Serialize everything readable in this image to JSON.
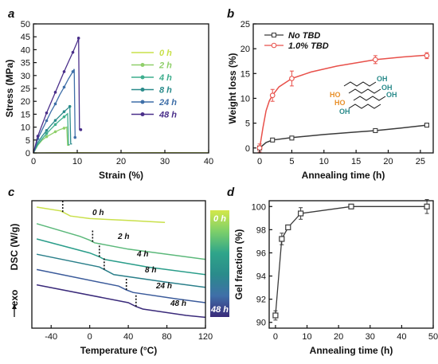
{
  "chart_data": [
    {
      "panel": "a",
      "type": "line",
      "xlabel": "Strain (%)",
      "ylabel": "Stress (MPa)",
      "xlim": [
        0,
        40
      ],
      "ylim": [
        0,
        50
      ],
      "xticks": [
        0,
        10,
        20,
        30,
        40
      ],
      "yticks": [
        0,
        5,
        10,
        15,
        20,
        25,
        30,
        35,
        40,
        45,
        50
      ],
      "legend_position": "center-right",
      "series": [
        {
          "name": "0 h",
          "color": "#c9e04a",
          "points": [
            [
              0,
              0
            ],
            [
              5,
              0.1
            ],
            [
              10,
              0.1
            ],
            [
              20,
              0.05
            ],
            [
              30,
              0.1
            ],
            [
              40,
              0.05
            ]
          ]
        },
        {
          "name": "2 h",
          "color": "#8fcf6a",
          "points": [
            [
              0,
              0
            ],
            [
              1,
              3
            ],
            [
              2,
              5
            ],
            [
              3,
              6.3
            ],
            [
              4,
              7.2
            ],
            [
              5,
              8.2
            ],
            [
              6,
              9
            ],
            [
              7,
              9.6
            ],
            [
              7.6,
              10
            ],
            [
              7.8,
              3
            ],
            [
              8.2,
              3
            ]
          ]
        },
        {
          "name": "4 h",
          "color": "#3fae8e",
          "points": [
            [
              0,
              0
            ],
            [
              1,
              3.3
            ],
            [
              2,
              5.5
            ],
            [
              3,
              7.5
            ],
            [
              4,
              9.3
            ],
            [
              5,
              11
            ],
            [
              6,
              12.6
            ],
            [
              7,
              14
            ],
            [
              7.8,
              15.2
            ],
            [
              8,
              3.2
            ],
            [
              8.3,
              3.2
            ]
          ]
        },
        {
          "name": "8 h",
          "color": "#2a8b8b",
          "points": [
            [
              0,
              0
            ],
            [
              1,
              4
            ],
            [
              2,
              6.5
            ],
            [
              3,
              8.7
            ],
            [
              4,
              10.7
            ],
            [
              5,
              12.6
            ],
            [
              6,
              14.3
            ],
            [
              7,
              16
            ],
            [
              8,
              17.5
            ],
            [
              8.3,
              18
            ],
            [
              8.5,
              3.5
            ],
            [
              8.8,
              3.5
            ]
          ]
        },
        {
          "name": "24 h",
          "color": "#3f6fa8",
          "points": [
            [
              0,
              0
            ],
            [
              1,
              5.5
            ],
            [
              2,
              9
            ],
            [
              3,
              12.5
            ],
            [
              4,
              16
            ],
            [
              5,
              19
            ],
            [
              6,
              22.5
            ],
            [
              7,
              25.5
            ],
            [
              8,
              28.7
            ],
            [
              9,
              31.5
            ],
            [
              9.3,
              32.5
            ],
            [
              9.5,
              6
            ],
            [
              9.8,
              6
            ]
          ]
        },
        {
          "name": "48 h",
          "color": "#4a2f8a",
          "points": [
            [
              0,
              0
            ],
            [
              1,
              6.5
            ],
            [
              2,
              11
            ],
            [
              3,
              15.5
            ],
            [
              4,
              19.5
            ],
            [
              5,
              23.5
            ],
            [
              6,
              27.5
            ],
            [
              7,
              31.5
            ],
            [
              8,
              35.3
            ],
            [
              9,
              39
            ],
            [
              10,
              43
            ],
            [
              10.3,
              44.5
            ],
            [
              10.5,
              9
            ],
            [
              10.8,
              9
            ]
          ]
        }
      ]
    },
    {
      "panel": "b",
      "type": "line",
      "xlabel": "Annealing time (h)",
      "ylabel": "Weight loss (%)",
      "xlim": [
        -1,
        27
      ],
      "ylim": [
        -1,
        25
      ],
      "xticks": [
        0,
        5,
        10,
        15,
        20,
        25
      ],
      "yticks": [
        0,
        5,
        10,
        15,
        20,
        25
      ],
      "legend_position": "top-left",
      "series": [
        {
          "name": "No TBD",
          "color": "#3a3a3a",
          "marker": "square",
          "points": [
            [
              0,
              0
            ],
            [
              2,
              1.6
            ],
            [
              5,
              2
            ],
            [
              18,
              3.5
            ],
            [
              26,
              4.6
            ]
          ],
          "errors": [
            0.2,
            0.3,
            0.2,
            0.3,
            0.3
          ],
          "fit": [
            [
              0,
              0
            ],
            [
              1,
              1.1
            ],
            [
              2,
              1.6
            ],
            [
              5,
              2.1
            ],
            [
              10,
              2.7
            ],
            [
              15,
              3.2
            ],
            [
              18,
              3.5
            ],
            [
              22,
              4.0
            ],
            [
              26,
              4.6
            ]
          ]
        },
        {
          "name": "1.0% TBD",
          "color": "#e8504a",
          "marker": "circle",
          "points": [
            [
              0,
              0
            ],
            [
              2,
              10.6
            ],
            [
              5,
              14
            ],
            [
              18,
              17.8
            ],
            [
              26,
              18.6
            ]
          ],
          "errors": [
            0.8,
            1.2,
            1.5,
            0.8,
            0.6
          ],
          "fit": [
            [
              0,
              0
            ],
            [
              0.5,
              4
            ],
            [
              1,
              7.5
            ],
            [
              1.5,
              9.5
            ],
            [
              2,
              10.6
            ],
            [
              3,
              12.3
            ],
            [
              5,
              14
            ],
            [
              8,
              15.3
            ],
            [
              12,
              16.5
            ],
            [
              18,
              17.8
            ],
            [
              22,
              18.3
            ],
            [
              26,
              18.7
            ]
          ]
        }
      ],
      "inset_molecule": {
        "labels_orange": [
          "HO",
          "HO"
        ],
        "labels_teal": [
          "OH",
          "OH",
          "OH",
          "OH"
        ]
      }
    },
    {
      "panel": "c",
      "type": "line",
      "xlabel": "Temperature (°C)",
      "ylabel": "DSC (W/g)",
      "ylabel_prefix": "exo",
      "xlim": [
        -60,
        120
      ],
      "xticks": [
        -40,
        0,
        40,
        80,
        120
      ],
      "colorbar": {
        "top": "0 h",
        "bottom": "48 h",
        "colors": [
          "#d4e84a",
          "#7ccf6a",
          "#2fa58a",
          "#2a8b8b",
          "#3f6fa8",
          "#3a2a7a"
        ]
      },
      "series": [
        {
          "name": "0 h",
          "color": "#c9e04a",
          "points": [
            [
              -55,
              9.5
            ],
            [
              -30,
              9.2
            ],
            [
              -20,
              8.8
            ],
            [
              0,
              8.6
            ],
            [
              40,
              8.45
            ],
            [
              78,
              8.3
            ]
          ],
          "tg": -28
        },
        {
          "name": "2 h",
          "color": "#5bb87a",
          "points": [
            [
              -55,
              8.2
            ],
            [
              -10,
              7.2
            ],
            [
              0,
              6.9
            ],
            [
              5,
              6.7
            ],
            [
              40,
              6.2
            ],
            [
              120,
              5.4
            ]
          ],
          "tg": 3
        },
        {
          "name": "4 h",
          "color": "#2a9d8a",
          "points": [
            [
              -55,
              7.0
            ],
            [
              0,
              5.9
            ],
            [
              10,
              5.6
            ],
            [
              15,
              5.4
            ],
            [
              60,
              4.8
            ],
            [
              120,
              4.2
            ]
          ],
          "tg": 10
        },
        {
          "name": "8 h",
          "color": "#2a7f8a",
          "points": [
            [
              -55,
              5.8
            ],
            [
              10,
              4.8
            ],
            [
              20,
              4.4
            ],
            [
              25,
              4.2
            ],
            [
              80,
              3.6
            ],
            [
              120,
              3.2
            ]
          ],
          "tg": 15
        },
        {
          "name": "24 h",
          "color": "#3a5a9a",
          "points": [
            [
              -55,
              4.6
            ],
            [
              30,
              3.3
            ],
            [
              38,
              3.0
            ],
            [
              45,
              2.8
            ],
            [
              90,
              2.3
            ],
            [
              120,
              2.0
            ]
          ],
          "tg": 38
        },
        {
          "name": "48 h",
          "color": "#3a2a7a",
          "points": [
            [
              -55,
              3.4
            ],
            [
              40,
              2.0
            ],
            [
              48,
              1.7
            ],
            [
              55,
              1.5
            ],
            [
              100,
              1.0
            ],
            [
              120,
              0.85
            ]
          ],
          "tg": 48
        }
      ]
    },
    {
      "panel": "d",
      "type": "line",
      "xlabel": "Annealing time (h)",
      "ylabel": "Gel fraction (%)",
      "xlim": [
        -2,
        50
      ],
      "ylim": [
        89.5,
        100.5
      ],
      "xticks": [
        0,
        10,
        20,
        30,
        40,
        50
      ],
      "yticks": [
        90,
        92,
        94,
        96,
        98,
        100
      ],
      "series": [
        {
          "name": "",
          "color": "#3a3a3a",
          "marker": "square",
          "points": [
            [
              0,
              90.6
            ],
            [
              2,
              97.2
            ],
            [
              4,
              98.2
            ],
            [
              8,
              99.4
            ],
            [
              24,
              100
            ],
            [
              48,
              100
            ]
          ],
          "errors": [
            0.4,
            0.5,
            0.2,
            0.5,
            0.1,
            0.6
          ]
        }
      ]
    }
  ]
}
